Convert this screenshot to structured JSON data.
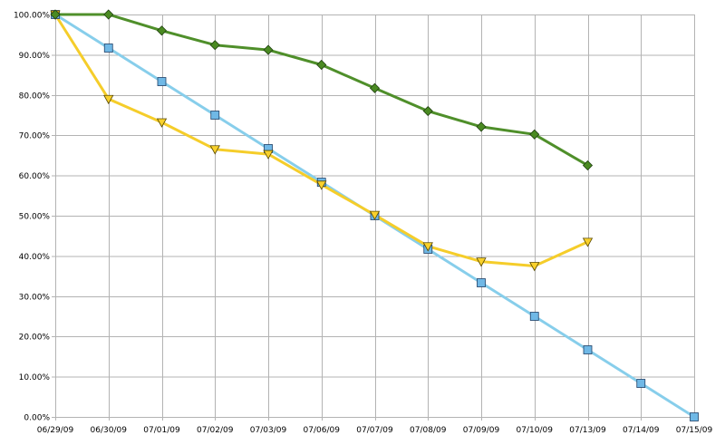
{
  "chart_data": {
    "type": "line",
    "title": "",
    "xlabel": "",
    "ylabel": "",
    "categories": [
      "06/29/09",
      "06/30/09",
      "07/01/09",
      "07/02/09",
      "07/03/09",
      "07/06/09",
      "07/07/09",
      "07/08/09",
      "07/09/09",
      "07/10/09",
      "07/13/09",
      "07/14/09",
      "07/15/09"
    ],
    "ylim": [
      0,
      100
    ],
    "yticks": [
      0,
      10,
      20,
      30,
      40,
      50,
      60,
      70,
      80,
      90,
      100
    ],
    "ytick_labels": [
      "0.00%",
      "10.00%",
      "20.00%",
      "30.00%",
      "40.00%",
      "50.00%",
      "60.00%",
      "70.00%",
      "80.00%",
      "90.00%",
      "100.00%"
    ],
    "grid": true,
    "legend": "none",
    "series": [
      {
        "color": "#87ceeb",
        "marker_color": "#6fb8e6",
        "marker": "square",
        "values": [
          100,
          91.67,
          83.33,
          75.0,
          66.67,
          58.33,
          50.0,
          41.67,
          33.33,
          25.0,
          16.67,
          8.33,
          0.0
        ]
      },
      {
        "color": "#f5cd2a",
        "marker_color": "#f9d12c",
        "marker": "triangle-down",
        "values": [
          100,
          79.0,
          73.2,
          66.5,
          65.3,
          57.7,
          50.2,
          42.4,
          38.6,
          37.5,
          43.5,
          null,
          null
        ]
      },
      {
        "color": "#4f8f2a",
        "marker_color": "#4a8a22",
        "marker": "diamond",
        "values": [
          100,
          100,
          96.0,
          92.4,
          91.2,
          87.5,
          81.7,
          76.0,
          72.1,
          70.2,
          62.5,
          null,
          null
        ]
      }
    ]
  }
}
